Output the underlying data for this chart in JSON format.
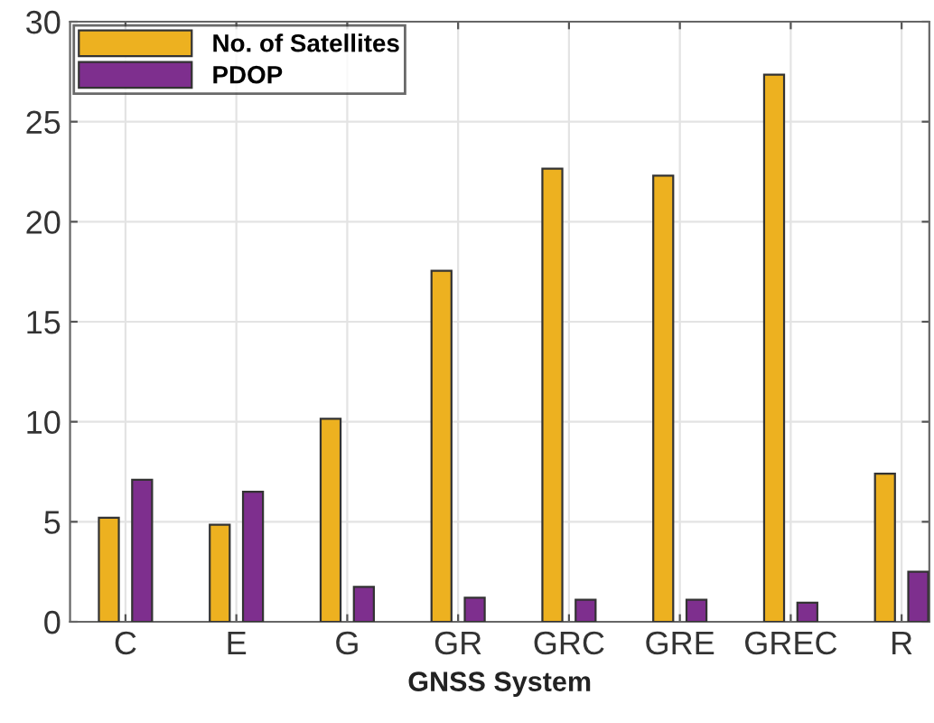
{
  "chart_data": {
    "type": "bar",
    "xlabel": "GNSS System",
    "categories": [
      "C",
      "E",
      "G",
      "GR",
      "GRC",
      "GRE",
      "GREC",
      "R"
    ],
    "series": [
      {
        "name": "No. of Satellites",
        "color": "#edb120",
        "values": [
          5.2,
          4.85,
          10.15,
          17.55,
          22.65,
          22.3,
          27.35,
          7.4
        ]
      },
      {
        "name": "PDOP",
        "color": "#7e2f8e",
        "values": [
          7.1,
          6.5,
          1.75,
          1.2,
          1.1,
          1.1,
          0.95,
          2.5
        ]
      }
    ],
    "ylim": [
      0,
      30
    ],
    "yticks": [
      0,
      5,
      10,
      15,
      20,
      25,
      30
    ],
    "grid": true,
    "legend": "top left"
  }
}
